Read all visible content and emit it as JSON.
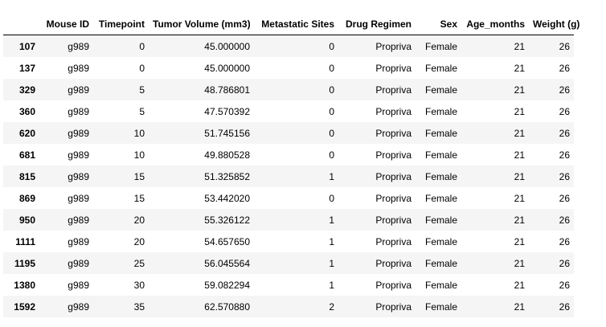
{
  "table": {
    "index_header": "",
    "columns": [
      "Mouse ID",
      "Timepoint",
      "Tumor Volume (mm3)",
      "Metastatic Sites",
      "Drug Regimen",
      "Sex",
      "Age_months",
      "Weight (g)"
    ],
    "rows": [
      {
        "index": "107",
        "cells": [
          "g989",
          "0",
          "45.000000",
          "0",
          "Propriva",
          "Female",
          "21",
          "26"
        ]
      },
      {
        "index": "137",
        "cells": [
          "g989",
          "0",
          "45.000000",
          "0",
          "Propriva",
          "Female",
          "21",
          "26"
        ]
      },
      {
        "index": "329",
        "cells": [
          "g989",
          "5",
          "48.786801",
          "0",
          "Propriva",
          "Female",
          "21",
          "26"
        ]
      },
      {
        "index": "360",
        "cells": [
          "g989",
          "5",
          "47.570392",
          "0",
          "Propriva",
          "Female",
          "21",
          "26"
        ]
      },
      {
        "index": "620",
        "cells": [
          "g989",
          "10",
          "51.745156",
          "0",
          "Propriva",
          "Female",
          "21",
          "26"
        ]
      },
      {
        "index": "681",
        "cells": [
          "g989",
          "10",
          "49.880528",
          "0",
          "Propriva",
          "Female",
          "21",
          "26"
        ]
      },
      {
        "index": "815",
        "cells": [
          "g989",
          "15",
          "51.325852",
          "1",
          "Propriva",
          "Female",
          "21",
          "26"
        ]
      },
      {
        "index": "869",
        "cells": [
          "g989",
          "15",
          "53.442020",
          "0",
          "Propriva",
          "Female",
          "21",
          "26"
        ]
      },
      {
        "index": "950",
        "cells": [
          "g989",
          "20",
          "55.326122",
          "1",
          "Propriva",
          "Female",
          "21",
          "26"
        ]
      },
      {
        "index": "1111",
        "cells": [
          "g989",
          "20",
          "54.657650",
          "1",
          "Propriva",
          "Female",
          "21",
          "26"
        ]
      },
      {
        "index": "1195",
        "cells": [
          "g989",
          "25",
          "56.045564",
          "1",
          "Propriva",
          "Female",
          "21",
          "26"
        ]
      },
      {
        "index": "1380",
        "cells": [
          "g989",
          "30",
          "59.082294",
          "1",
          "Propriva",
          "Female",
          "21",
          "26"
        ]
      },
      {
        "index": "1592",
        "cells": [
          "g989",
          "35",
          "62.570880",
          "2",
          "Propriva",
          "Female",
          "21",
          "26"
        ]
      }
    ]
  }
}
